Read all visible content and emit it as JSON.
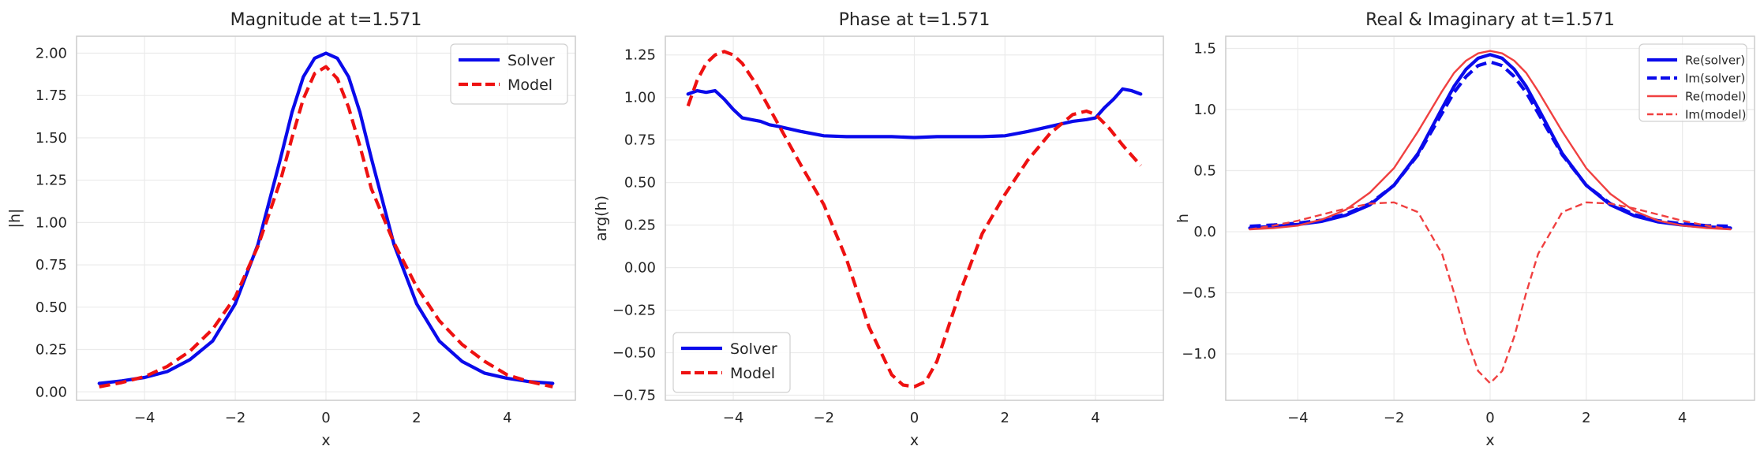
{
  "chart_data": [
    {
      "type": "line",
      "title": "Magnitude at t=1.571",
      "xlabel": "x",
      "ylabel": "|h|",
      "xlim": [
        -5.5,
        5.5
      ],
      "ylim": [
        -0.05,
        2.1
      ],
      "xticks": [
        -4,
        -2,
        0,
        2,
        4
      ],
      "yticks": [
        0.0,
        0.25,
        0.5,
        0.75,
        1.0,
        1.25,
        1.5,
        1.75,
        2.0
      ],
      "xtick_labels": [
        "−4",
        "−2",
        "0",
        "2",
        "4"
      ],
      "ytick_labels": [
        "0.00",
        "0.25",
        "0.50",
        "0.75",
        "1.00",
        "1.25",
        "1.50",
        "1.75",
        "2.00"
      ],
      "grid": true,
      "legend": "top-right",
      "series": [
        {
          "name": "Solver",
          "color": "#0a0aeb",
          "style": "solid",
          "x": [
            -5,
            -4.5,
            -4,
            -3.5,
            -3,
            -2.5,
            -2,
            -1.5,
            -1,
            -0.75,
            -0.5,
            -0.25,
            0,
            0.25,
            0.5,
            0.75,
            1,
            1.5,
            2,
            2.5,
            3,
            3.5,
            4,
            4.5,
            5
          ],
          "y": [
            0.05,
            0.065,
            0.085,
            0.12,
            0.19,
            0.3,
            0.52,
            0.87,
            1.38,
            1.65,
            1.86,
            1.97,
            2.0,
            1.97,
            1.86,
            1.65,
            1.38,
            0.87,
            0.52,
            0.3,
            0.18,
            0.11,
            0.08,
            0.06,
            0.05
          ]
        },
        {
          "name": "Model",
          "color": "#ee1111",
          "style": "dashed",
          "x": [
            -5,
            -4.5,
            -4,
            -3.5,
            -3,
            -2.5,
            -2,
            -1.5,
            -1,
            -0.75,
            -0.5,
            -0.25,
            0,
            0.25,
            0.5,
            0.75,
            1,
            1.5,
            2,
            2.5,
            3,
            3.5,
            4,
            4.5,
            5
          ],
          "y": [
            0.03,
            0.055,
            0.09,
            0.15,
            0.24,
            0.37,
            0.56,
            0.86,
            1.25,
            1.5,
            1.73,
            1.88,
            1.92,
            1.85,
            1.68,
            1.45,
            1.2,
            0.88,
            0.62,
            0.42,
            0.28,
            0.18,
            0.1,
            0.06,
            0.03
          ]
        }
      ]
    },
    {
      "type": "line",
      "title": "Phase at t=1.571",
      "xlabel": "x",
      "ylabel": "arg(h)",
      "xlim": [
        -5.5,
        5.5
      ],
      "ylim": [
        -0.78,
        1.36
      ],
      "xticks": [
        -4,
        -2,
        0,
        2,
        4
      ],
      "yticks": [
        -0.75,
        -0.5,
        -0.25,
        0.0,
        0.25,
        0.5,
        0.75,
        1.0,
        1.25
      ],
      "xtick_labels": [
        "−4",
        "−2",
        "0",
        "2",
        "4"
      ],
      "ytick_labels": [
        "−0.75",
        "−0.50",
        "−0.25",
        "0.00",
        "0.25",
        "0.50",
        "0.75",
        "1.00",
        "1.25"
      ],
      "grid": true,
      "legend": "bottom-left",
      "series": [
        {
          "name": "Solver",
          "color": "#0a0aeb",
          "style": "solid",
          "x": [
            -5,
            -4.8,
            -4.6,
            -4.4,
            -4.2,
            -4.0,
            -3.8,
            -3.6,
            -3.4,
            -3.2,
            -3.0,
            -2.5,
            -2,
            -1.5,
            -1,
            -0.5,
            0,
            0.5,
            1,
            1.5,
            2,
            2.5,
            3,
            3.5,
            3.8,
            4.0,
            4.2,
            4.4,
            4.6,
            4.8,
            5
          ],
          "y": [
            1.02,
            1.04,
            1.03,
            1.04,
            0.99,
            0.93,
            0.88,
            0.87,
            0.86,
            0.84,
            0.83,
            0.8,
            0.775,
            0.77,
            0.77,
            0.77,
            0.765,
            0.77,
            0.77,
            0.77,
            0.775,
            0.8,
            0.83,
            0.86,
            0.87,
            0.88,
            0.94,
            0.99,
            1.05,
            1.04,
            1.02
          ]
        },
        {
          "name": "Model",
          "color": "#ee1111",
          "style": "dashed",
          "x": [
            -5,
            -4.8,
            -4.6,
            -4.4,
            -4.2,
            -4.0,
            -3.8,
            -3.5,
            -3,
            -2.5,
            -2,
            -1.5,
            -1,
            -0.5,
            -0.25,
            0,
            0.25,
            0.5,
            1,
            1.5,
            2,
            2.5,
            3,
            3.5,
            3.8,
            4.0,
            4.3,
            4.6,
            5
          ],
          "y": [
            0.95,
            1.1,
            1.2,
            1.25,
            1.27,
            1.25,
            1.2,
            1.08,
            0.84,
            0.6,
            0.37,
            0.05,
            -0.35,
            -0.63,
            -0.69,
            -0.7,
            -0.67,
            -0.55,
            -0.15,
            0.2,
            0.43,
            0.63,
            0.79,
            0.9,
            0.92,
            0.9,
            0.82,
            0.72,
            0.6
          ]
        }
      ]
    },
    {
      "type": "line",
      "title": "Real & Imaginary at t=1.571",
      "xlabel": "x",
      "ylabel": "h",
      "xlim": [
        -5.5,
        5.5
      ],
      "ylim": [
        -1.38,
        1.6
      ],
      "xticks": [
        -4,
        -2,
        0,
        2,
        4
      ],
      "yticks": [
        -1.0,
        -0.5,
        0.0,
        0.5,
        1.0,
        1.5
      ],
      "xtick_labels": [
        "−4",
        "−2",
        "0",
        "2",
        "4"
      ],
      "ytick_labels": [
        "−1.0",
        "−0.5",
        "0.0",
        "0.5",
        "1.0",
        "1.5"
      ],
      "grid": true,
      "legend": "top-right",
      "series": [
        {
          "name": "Re(solver)",
          "color": "#0a0aeb",
          "style": "solid",
          "x": [
            -5,
            -4.5,
            -4,
            -3.5,
            -3,
            -2.5,
            -2,
            -1.5,
            -1,
            -0.75,
            -0.5,
            -0.25,
            0,
            0.25,
            0.5,
            0.75,
            1,
            1.5,
            2,
            2.5,
            3,
            3.5,
            4,
            4.5,
            5
          ],
          "y": [
            0.03,
            0.045,
            0.06,
            0.085,
            0.135,
            0.22,
            0.38,
            0.64,
            1.01,
            1.19,
            1.33,
            1.42,
            1.45,
            1.42,
            1.33,
            1.19,
            1.01,
            0.64,
            0.38,
            0.22,
            0.13,
            0.08,
            0.055,
            0.04,
            0.03
          ]
        },
        {
          "name": "Im(solver)",
          "color": "#0a0aeb",
          "style": "dashed",
          "x": [
            -5,
            -4.5,
            -4,
            -3.5,
            -3,
            -2.5,
            -2,
            -1.5,
            -1,
            -0.75,
            -0.5,
            -0.25,
            0,
            0.25,
            0.5,
            0.75,
            1,
            1.5,
            2,
            2.5,
            3,
            3.5,
            4,
            4.5,
            5
          ],
          "y": [
            0.045,
            0.055,
            0.07,
            0.095,
            0.145,
            0.23,
            0.38,
            0.63,
            0.97,
            1.14,
            1.27,
            1.36,
            1.39,
            1.36,
            1.27,
            1.14,
            0.97,
            0.63,
            0.38,
            0.23,
            0.14,
            0.09,
            0.065,
            0.05,
            0.045
          ]
        },
        {
          "name": "Re(model)",
          "color": "#f04040",
          "style": "solid",
          "x": [
            -5,
            -4.5,
            -4,
            -3.5,
            -3,
            -2.5,
            -2,
            -1.5,
            -1,
            -0.75,
            -0.5,
            -0.25,
            0,
            0.25,
            0.5,
            0.75,
            1,
            1.5,
            2,
            2.5,
            3,
            3.5,
            4,
            4.5,
            5
          ],
          "y": [
            0.02,
            0.03,
            0.05,
            0.1,
            0.18,
            0.32,
            0.52,
            0.82,
            1.15,
            1.3,
            1.4,
            1.46,
            1.48,
            1.46,
            1.4,
            1.3,
            1.15,
            0.82,
            0.52,
            0.31,
            0.17,
            0.09,
            0.05,
            0.03,
            0.02
          ]
        },
        {
          "name": "Im(model)",
          "color": "#f04040",
          "style": "dashed",
          "x": [
            -5,
            -4.5,
            -4,
            -3.5,
            -3,
            -2.5,
            -2,
            -1.5,
            -1,
            -0.75,
            -0.5,
            -0.25,
            0,
            0.25,
            0.5,
            0.75,
            1,
            1.5,
            2,
            2.5,
            3,
            3.5,
            4,
            4.5,
            5
          ],
          "y": [
            0.02,
            0.05,
            0.09,
            0.14,
            0.19,
            0.23,
            0.24,
            0.16,
            -0.18,
            -0.5,
            -0.86,
            -1.14,
            -1.24,
            -1.14,
            -0.86,
            -0.5,
            -0.18,
            0.16,
            0.24,
            0.23,
            0.19,
            0.14,
            0.09,
            0.05,
            0.02
          ]
        }
      ]
    }
  ]
}
